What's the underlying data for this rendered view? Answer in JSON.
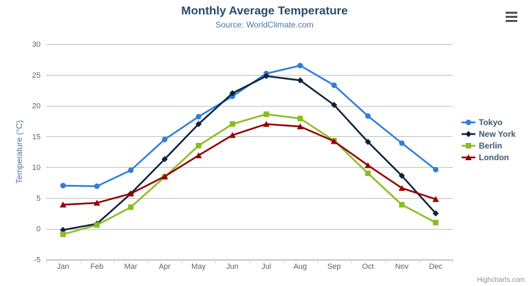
{
  "header": {
    "title": "Monthly Average Temperature",
    "subtitle": "Source: WorldClimate.com"
  },
  "menu": {
    "icon": "hamburger-icon"
  },
  "credit": {
    "label": "Highcharts.com"
  },
  "colors": {
    "title": "#274b6d",
    "subtitle": "#4d759e",
    "axis_title": "#4d759e",
    "tick_label": "#606060",
    "grid_line": "#c0c0c0",
    "axis_line": "#c0d0e0",
    "legend_text": "#3e576f",
    "credit_text": "#909090",
    "background": "#ffffff"
  },
  "chart_data": {
    "type": "line",
    "title": "Monthly Average Temperature",
    "subtitle": "Source: WorldClimate.com",
    "xlabel": "",
    "ylabel": "Temperature (°C)",
    "ylim": [
      -5,
      30
    ],
    "ytick_step": 5,
    "grid": true,
    "legend_position": "right-middle",
    "categories": [
      "Jan",
      "Feb",
      "Mar",
      "Apr",
      "May",
      "Jun",
      "Jul",
      "Aug",
      "Sep",
      "Oct",
      "Nov",
      "Dec"
    ],
    "series": [
      {
        "name": "Tokyo",
        "color": "#2f7ed8",
        "marker": "circle",
        "values": [
          7.0,
          6.9,
          9.5,
          14.5,
          18.2,
          21.5,
          25.2,
          26.5,
          23.3,
          18.3,
          13.9,
          9.6
        ]
      },
      {
        "name": "New York",
        "color": "#0d233a",
        "marker": "diamond",
        "values": [
          -0.2,
          0.8,
          5.7,
          11.3,
          17.0,
          22.0,
          24.8,
          24.1,
          20.1,
          14.1,
          8.6,
          2.5
        ]
      },
      {
        "name": "Berlin",
        "color": "#8bbc21",
        "marker": "square",
        "values": [
          -0.9,
          0.6,
          3.5,
          8.4,
          13.5,
          17.0,
          18.6,
          17.9,
          14.3,
          9.0,
          3.9,
          1.0
        ]
      },
      {
        "name": "London",
        "color": "#910000",
        "marker": "triangle",
        "values": [
          3.9,
          4.2,
          5.7,
          8.5,
          11.9,
          15.2,
          17.0,
          16.6,
          14.2,
          10.3,
          6.6,
          4.8
        ]
      }
    ]
  }
}
